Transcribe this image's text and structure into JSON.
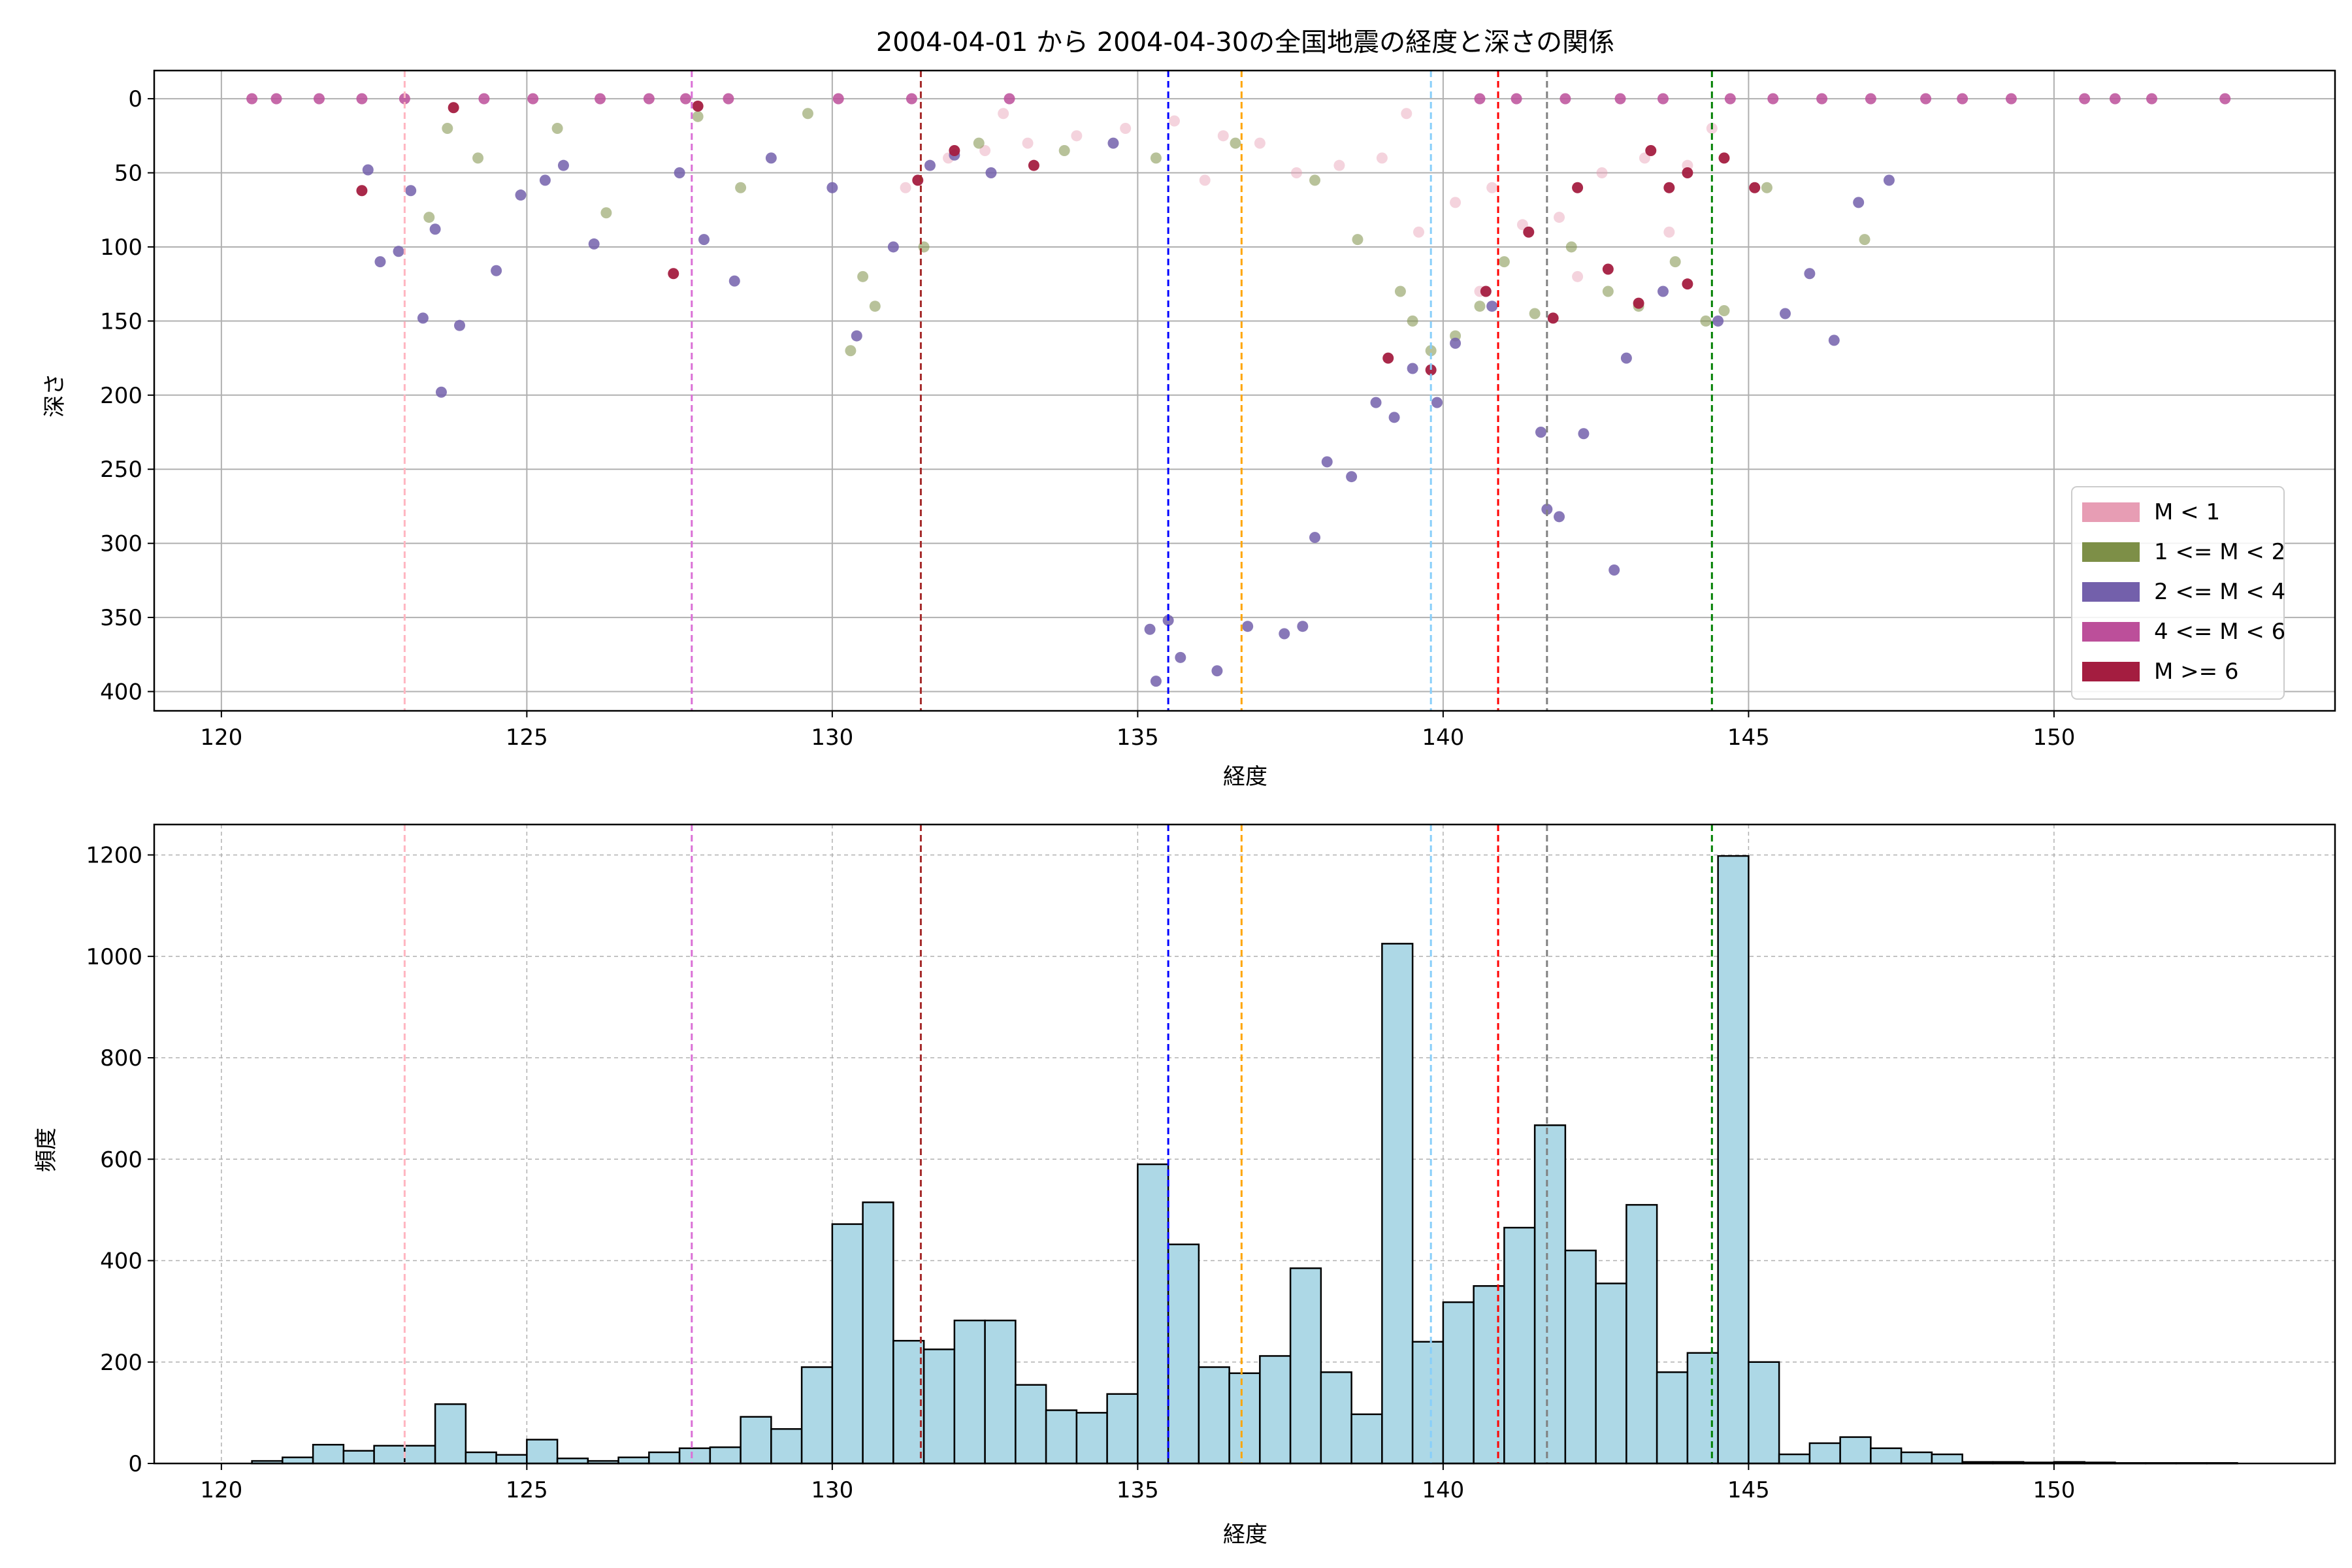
{
  "figure": {
    "title": "2004-04-01 から 2004-04-30の全国地震の経度と深さの関係"
  },
  "colors": {
    "legend": [
      "#e79db4",
      "#7d8f47",
      "#7360ab",
      "#bc4f9a",
      "#a41d40"
    ],
    "vlines": [
      "#ffb6c1",
      "#da70d6",
      "#a52a2a",
      "#0000ff",
      "#ffa500",
      "#87cefa",
      "#ff0000",
      "#808080",
      "#008000"
    ],
    "hist_fill": "#add8e6"
  },
  "chart_data": [
    {
      "type": "scatter",
      "title": "2004-04-01 から 2004-04-30の全国地震の経度と深さの関係",
      "xlabel": "経度",
      "ylabel": "深さ",
      "xlim": [
        118.9,
        154.6
      ],
      "ylim": [
        413,
        -19
      ],
      "y_inverted": true,
      "grid": true,
      "legend_position": "right",
      "xticks": [
        120,
        125,
        130,
        135,
        140,
        145,
        150
      ],
      "yticks": [
        0,
        50,
        100,
        150,
        200,
        250,
        300,
        350,
        400
      ],
      "series": [
        {
          "name": "M < 1",
          "color": "#e79db4",
          "points": [
            [
              131.9,
              40
            ],
            [
              132.5,
              35
            ],
            [
              133.2,
              30
            ],
            [
              134,
              25
            ],
            [
              134.8,
              20
            ],
            [
              135.6,
              15
            ],
            [
              136.4,
              25
            ],
            [
              137,
              30
            ],
            [
              137.6,
              50
            ],
            [
              138.3,
              45
            ],
            [
              139,
              40
            ],
            [
              139.6,
              90
            ],
            [
              140.2,
              70
            ],
            [
              140.8,
              60
            ],
            [
              141.3,
              85
            ],
            [
              141.9,
              80
            ],
            [
              142.6,
              50
            ],
            [
              143.3,
              40
            ],
            [
              144,
              45
            ],
            [
              131.2,
              60
            ],
            [
              132.8,
              10
            ],
            [
              136.1,
              55
            ],
            [
              139.4,
              10
            ],
            [
              140.6,
              130
            ],
            [
              142.2,
              120
            ],
            [
              143.7,
              90
            ],
            [
              144.4,
              20
            ]
          ]
        },
        {
          "name": "1 <= M < 2",
          "color": "#7d8f47",
          "points": [
            [
              123.4,
              80
            ],
            [
              123.7,
              20
            ],
            [
              124.2,
              40
            ],
            [
              127.8,
              12
            ],
            [
              128.5,
              60
            ],
            [
              129.6,
              10
            ],
            [
              130.3,
              170
            ],
            [
              130.5,
              120
            ],
            [
              130.7,
              140
            ],
            [
              131.5,
              100
            ],
            [
              132.4,
              30
            ],
            [
              133.8,
              35
            ],
            [
              135.3,
              40
            ],
            [
              136.6,
              30
            ],
            [
              137.9,
              55
            ],
            [
              138.6,
              95
            ],
            [
              139.3,
              130
            ],
            [
              139.5,
              150
            ],
            [
              139.8,
              170
            ],
            [
              140.2,
              160
            ],
            [
              140.6,
              140
            ],
            [
              141,
              110
            ],
            [
              141.5,
              145
            ],
            [
              142.1,
              100
            ],
            [
              142.7,
              130
            ],
            [
              143.2,
              140
            ],
            [
              143.8,
              110
            ],
            [
              144.3,
              150
            ],
            [
              144.6,
              143
            ],
            [
              145.3,
              60
            ],
            [
              146.9,
              95
            ],
            [
              125.5,
              20
            ],
            [
              126.3,
              77
            ]
          ]
        },
        {
          "name": "2 <= M < 4",
          "color": "#7360ab",
          "points": [
            [
              122.4,
              48
            ],
            [
              122.6,
              110
            ],
            [
              122.9,
              103
            ],
            [
              123.1,
              62
            ],
            [
              123.3,
              148
            ],
            [
              123.5,
              88
            ],
            [
              123.6,
              198
            ],
            [
              123.9,
              153
            ],
            [
              124.5,
              116
            ],
            [
              125.6,
              45
            ],
            [
              126.1,
              98
            ],
            [
              127.5,
              50
            ],
            [
              127.9,
              95
            ],
            [
              128.4,
              123
            ],
            [
              129,
              40
            ],
            [
              130,
              60
            ],
            [
              130.4,
              160
            ],
            [
              131,
              100
            ],
            [
              131.6,
              45
            ],
            [
              132,
              38
            ],
            [
              132.6,
              50
            ],
            [
              134.6,
              30
            ],
            [
              135.2,
              358
            ],
            [
              135.3,
              393
            ],
            [
              135.5,
              352
            ],
            [
              135.7,
              377
            ],
            [
              136.3,
              386
            ],
            [
              136.8,
              356
            ],
            [
              137.4,
              361
            ],
            [
              137.7,
              356
            ],
            [
              137.9,
              296
            ],
            [
              138.1,
              245
            ],
            [
              138.5,
              255
            ],
            [
              138.9,
              205
            ],
            [
              139.2,
              215
            ],
            [
              139.5,
              182
            ],
            [
              139.9,
              205
            ],
            [
              140.2,
              165
            ],
            [
              140.8,
              140
            ],
            [
              141.6,
              225
            ],
            [
              141.7,
              277
            ],
            [
              141.9,
              282
            ],
            [
              142.3,
              226
            ],
            [
              142.8,
              318
            ],
            [
              143,
              175
            ],
            [
              143.6,
              130
            ],
            [
              144.5,
              150
            ],
            [
              145.6,
              145
            ],
            [
              146,
              118
            ],
            [
              146.4,
              163
            ],
            [
              146.8,
              70
            ],
            [
              147.3,
              55
            ],
            [
              125.3,
              55
            ],
            [
              124.9,
              65
            ]
          ]
        },
        {
          "name": "4 <= M < 6",
          "color": "#bc4f9a",
          "points": [
            [
              120.5,
              0
            ],
            [
              120.9,
              0
            ],
            [
              121.6,
              0
            ],
            [
              122.3,
              0
            ],
            [
              123,
              0
            ],
            [
              124.3,
              0
            ],
            [
              125.1,
              0
            ],
            [
              126.2,
              0
            ],
            [
              127,
              0
            ],
            [
              127.6,
              0
            ],
            [
              128.3,
              0
            ],
            [
              130.1,
              0
            ],
            [
              131.3,
              0
            ],
            [
              132.9,
              0
            ],
            [
              140.6,
              0
            ],
            [
              141.2,
              0
            ],
            [
              142,
              0
            ],
            [
              142.9,
              0
            ],
            [
              143.6,
              0
            ],
            [
              144.7,
              0
            ],
            [
              145.4,
              0
            ],
            [
              146.2,
              0
            ],
            [
              147,
              0
            ],
            [
              147.9,
              0
            ],
            [
              148.5,
              0
            ],
            [
              149.3,
              0
            ],
            [
              150.5,
              0
            ],
            [
              151,
              0
            ],
            [
              151.6,
              0
            ],
            [
              152.8,
              0
            ]
          ]
        },
        {
          "name": "M >= 6",
          "color": "#a41d40",
          "points": [
            [
              122.3,
              62
            ],
            [
              123.8,
              6
            ],
            [
              127.4,
              118
            ],
            [
              127.8,
              5
            ],
            [
              131.4,
              55
            ],
            [
              132,
              35
            ],
            [
              133.3,
              45
            ],
            [
              139.1,
              175
            ],
            [
              139.8,
              183
            ],
            [
              140.7,
              130
            ],
            [
              141.4,
              90
            ],
            [
              141.8,
              148
            ],
            [
              142.2,
              60
            ],
            [
              142.7,
              115
            ],
            [
              143.2,
              138
            ],
            [
              143.4,
              35
            ],
            [
              143.7,
              60
            ],
            [
              144,
              50
            ],
            [
              144,
              125
            ],
            [
              144.6,
              40
            ],
            [
              145.1,
              60
            ]
          ]
        }
      ],
      "vlines": [
        123.0,
        127.7,
        131.45,
        135.5,
        136.7,
        139.8,
        140.9,
        141.7,
        144.4
      ]
    },
    {
      "type": "bar",
      "subtype": "histogram",
      "xlabel": "経度",
      "ylabel": "頻度",
      "xlim": [
        118.9,
        154.6
      ],
      "ylim": [
        0,
        1260
      ],
      "grid": true,
      "grid_style": "dashed",
      "xticks": [
        120,
        125,
        130,
        135,
        140,
        145,
        150
      ],
      "yticks": [
        0,
        200,
        400,
        600,
        800,
        1000,
        1200
      ],
      "bin_start": 120.5,
      "bin_width": 0.5,
      "values": [
        5,
        12,
        37,
        25,
        35,
        35,
        117,
        22,
        17,
        47,
        10,
        5,
        12,
        22,
        30,
        32,
        92,
        68,
        190,
        472,
        515,
        242,
        225,
        282,
        282,
        155,
        105,
        100,
        137,
        590,
        432,
        190,
        178,
        212,
        385,
        180,
        97,
        1025,
        240,
        318,
        350,
        465,
        667,
        420,
        355,
        510,
        180,
        218,
        1198,
        200,
        18,
        40,
        52,
        30,
        22,
        18,
        3,
        3,
        2,
        3,
        2,
        1,
        1,
        1,
        1
      ]
    }
  ]
}
